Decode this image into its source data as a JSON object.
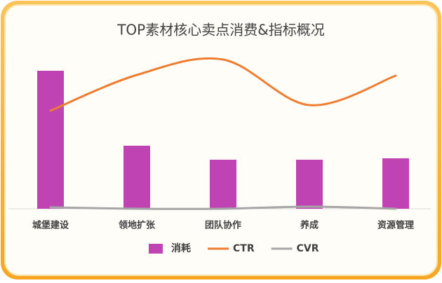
{
  "chart_data": {
    "type": "combo",
    "title": "TOP素材核心卖点消费&指标概况",
    "categories": [
      "城堡建设",
      "领地扩张",
      "团队协作",
      "养成",
      "资源管理"
    ],
    "series": [
      {
        "name": "消耗",
        "type": "bar",
        "color": "#c043b4",
        "values": [
          197,
          90,
          70,
          70,
          72
        ]
      },
      {
        "name": "CTR",
        "type": "line",
        "color": "#ee7d31",
        "axis": "y2",
        "values": [
          140,
          191,
          213,
          148,
          190
        ]
      },
      {
        "name": "CVR",
        "type": "line",
        "color": "#a6a6a6",
        "axis": "y2",
        "values": [
          2,
          0,
          0,
          3,
          0
        ]
      }
    ],
    "ylim": [
      0,
      200
    ],
    "y2lim": [
      0,
      200
    ]
  }
}
